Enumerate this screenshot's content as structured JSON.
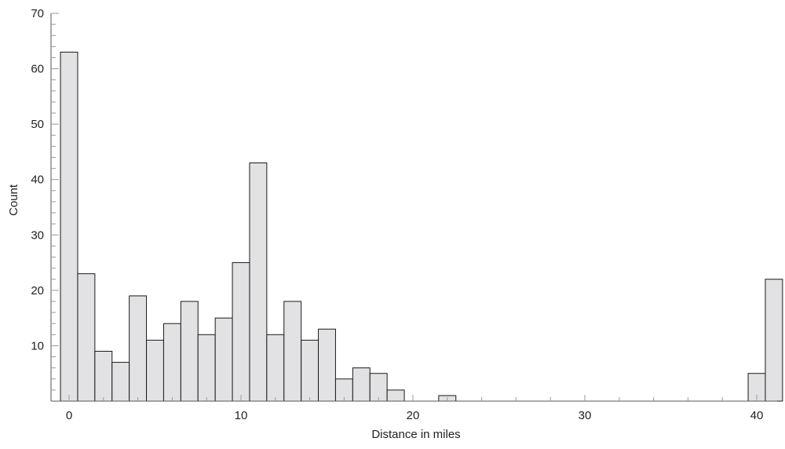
{
  "chart_data": {
    "type": "bar",
    "title": "",
    "xlabel": "Distance in miles",
    "ylabel": "Count",
    "xlim": [
      -0.5,
      41.5
    ],
    "ylim": [
      0,
      70
    ],
    "bin_width": 1,
    "x_ticks": [
      0,
      10,
      20,
      30,
      40
    ],
    "y_ticks": [
      10,
      20,
      30,
      40,
      50,
      60,
      70
    ],
    "bins": [
      {
        "x": 0,
        "count": 63
      },
      {
        "x": 1,
        "count": 23
      },
      {
        "x": 2,
        "count": 9
      },
      {
        "x": 3,
        "count": 7
      },
      {
        "x": 4,
        "count": 19
      },
      {
        "x": 5,
        "count": 11
      },
      {
        "x": 6,
        "count": 14
      },
      {
        "x": 7,
        "count": 18
      },
      {
        "x": 8,
        "count": 12
      },
      {
        "x": 9,
        "count": 15
      },
      {
        "x": 10,
        "count": 25
      },
      {
        "x": 11,
        "count": 43
      },
      {
        "x": 12,
        "count": 12
      },
      {
        "x": 13,
        "count": 18
      },
      {
        "x": 14,
        "count": 11
      },
      {
        "x": 15,
        "count": 13
      },
      {
        "x": 16,
        "count": 4
      },
      {
        "x": 17,
        "count": 6
      },
      {
        "x": 18,
        "count": 5
      },
      {
        "x": 19,
        "count": 2
      },
      {
        "x": 22,
        "count": 1
      },
      {
        "x": 40,
        "count": 5
      },
      {
        "x": 41,
        "count": 22
      }
    ],
    "grid": false,
    "colors": {
      "bar_fill": "#e2e2e4",
      "bar_stroke": "#1a1a1a",
      "axis": "#555555"
    }
  }
}
